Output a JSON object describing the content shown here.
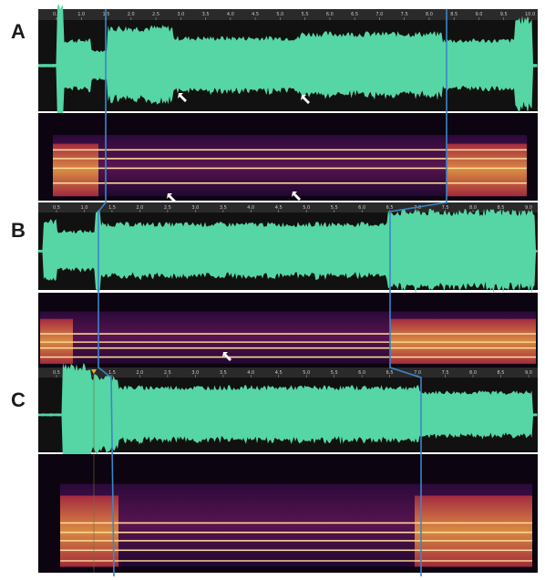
{
  "figure": {
    "panels": [
      {
        "id": "A",
        "label": "A",
        "ticks": [
          "0.5",
          "1.0",
          "1.5",
          "2.0",
          "2.5",
          "3.0",
          "3.5",
          "4.0",
          "4.5",
          "5.0",
          "5.5",
          "6.0",
          "6.5",
          "7.0",
          "7.5",
          "8.0",
          "8.5",
          "9.0",
          "9.5",
          "10.0"
        ]
      },
      {
        "id": "B",
        "label": "B",
        "ticks": [
          "0.5",
          "1.0",
          "1.5",
          "2.0",
          "2.5",
          "3.0",
          "3.5",
          "4.0",
          "4.5",
          "5.0",
          "5.5",
          "6.0",
          "6.5",
          "7.0",
          "7.5",
          "8.0",
          "8.5",
          "9.0"
        ]
      },
      {
        "id": "C",
        "label": "C",
        "ticks": [
          "0.5",
          "1.0",
          "1.5",
          "2.0",
          "2.5",
          "3.0",
          "3.5",
          "4.0",
          "4.5",
          "5.0",
          "5.5",
          "6.0",
          "6.5",
          "7.0",
          "7.5",
          "8.0",
          "8.5",
          "9.0"
        ]
      }
    ],
    "colors": {
      "waveform": "#55d6a4",
      "background": "#111111",
      "ruler": "#2a2a2a",
      "guide": "#3a86c8",
      "arrow": "#ffffff",
      "playhead": "#e0b030"
    }
  }
}
